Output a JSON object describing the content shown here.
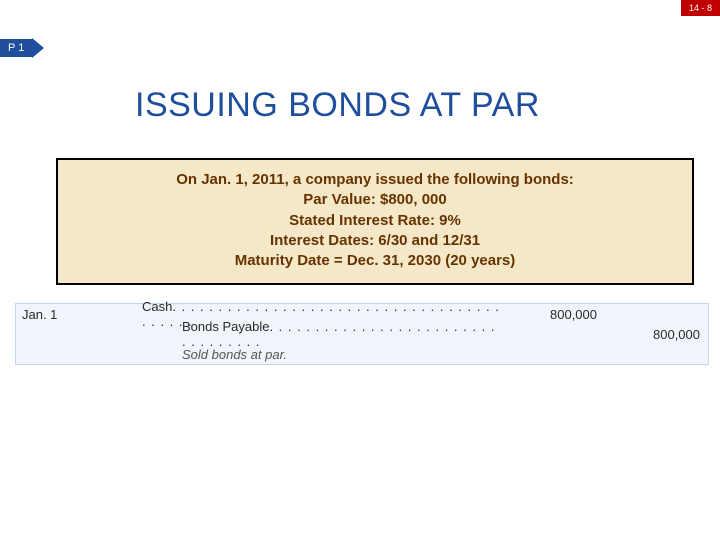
{
  "slideNumber": "14 - 8",
  "marker": "P 1",
  "title": "ISSUING BONDS AT PAR",
  "infoBox": {
    "line1": "On Jan. 1, 2011, a company issued the following bonds:",
    "line2": "Par Value:  $800, 000",
    "line3": "Stated Interest Rate: 9%",
    "line4": "Interest Dates: 6/30 and 12/31",
    "line5": "Maturity Date = Dec. 31, 2030 (20 years)"
  },
  "journal": {
    "date": "Jan. 1",
    "row1": {
      "account": "Cash",
      "dots": ". . . . . . . . . . . . . . . . . . . . . . . . . . . . . . . . . . . . . . . . . .",
      "debit": "800,000",
      "credit": ""
    },
    "row2": {
      "account": "Bonds Payable",
      "dots": ". . . . . . . . . . . . . . . . . . . . . . . . . . . . . . . . . .",
      "debit": "",
      "credit": "800,000"
    },
    "row3": {
      "note": "Sold bonds at par."
    }
  },
  "colors": {
    "slideNumBg": "#c00000",
    "markerBg": "#1e4e9c",
    "titleColor": "#1e4e9c",
    "infoBoxBg": "#f5e8c8",
    "infoBoxText": "#663300",
    "journalBg": "#f0f5fb",
    "journalBorder": "#c5d6ea"
  }
}
